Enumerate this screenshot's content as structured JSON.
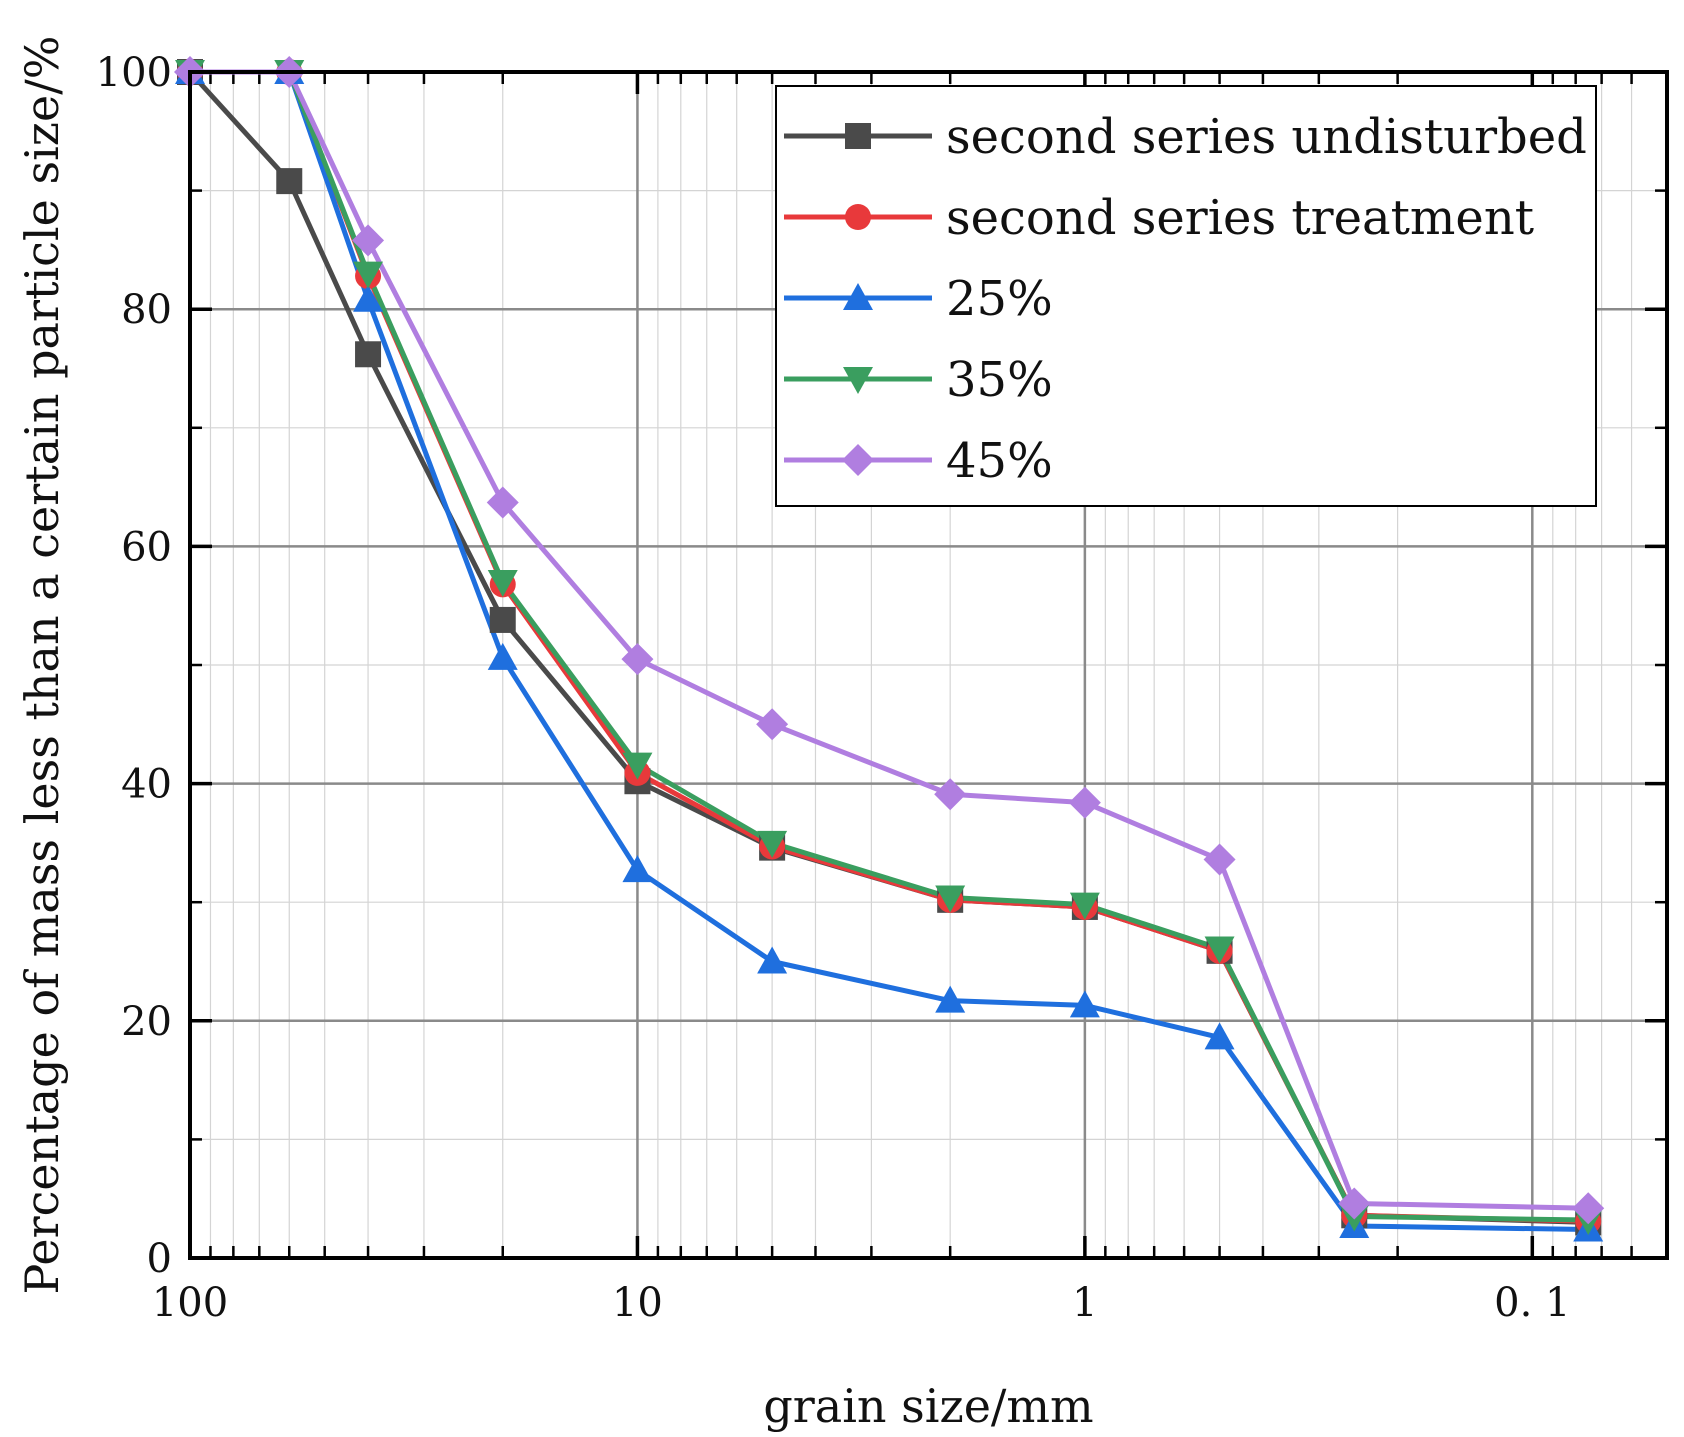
{
  "chart_data": {
    "type": "line",
    "xscale": "log",
    "xaxis_reversed": true,
    "xlabel": "grain size/mm",
    "ylabel": "Percentage of mass less than a certain particle size/%",
    "xlim": [
      100,
      0.05
    ],
    "ylim": [
      0,
      100
    ],
    "x_ticks": [
      {
        "value": 100,
        "label": "100"
      },
      {
        "value": 10,
        "label": "10"
      },
      {
        "value": 1,
        "label": "1"
      },
      {
        "value": 0.1,
        "label": "0. 1"
      }
    ],
    "y_ticks": [
      {
        "value": 0,
        "label": "0"
      },
      {
        "value": 20,
        "label": "20"
      },
      {
        "value": 40,
        "label": "40"
      },
      {
        "value": 60,
        "label": "60"
      },
      {
        "value": 80,
        "label": "80"
      },
      {
        "value": 100,
        "label": "100"
      }
    ],
    "grid": true,
    "legend_position": "top-right",
    "x": [
      100,
      60,
      40,
      20,
      10,
      5,
      2,
      1,
      0.5,
      0.25,
      0.075
    ],
    "series": [
      {
        "name": "second series undisturbed",
        "marker": "square",
        "color": "#4a4a4a",
        "values": [
          100,
          90.8,
          76.2,
          53.8,
          40.2,
          34.6,
          30.2,
          29.6,
          25.9,
          3.6,
          3.0
        ]
      },
      {
        "name": "second series treatment",
        "marker": "circle",
        "color": "#e8393b",
        "values": [
          100,
          100,
          82.8,
          56.8,
          40.9,
          34.7,
          30.2,
          29.6,
          25.9,
          3.6,
          3.1
        ]
      },
      {
        "name": "25%",
        "marker": "triangle-up",
        "color": "#1f6fde",
        "values": [
          100,
          100,
          80.8,
          50.6,
          32.7,
          25.0,
          21.7,
          21.3,
          18.6,
          2.7,
          2.4
        ]
      },
      {
        "name": "35%",
        "marker": "triangle-down",
        "color": "#3a9e5f",
        "values": [
          100,
          100,
          83.0,
          57.0,
          41.6,
          35.0,
          30.4,
          29.8,
          26.1,
          3.5,
          3.2
        ]
      },
      {
        "name": "45%",
        "marker": "diamond",
        "color": "#b07ee0",
        "values": [
          100,
          100,
          85.8,
          63.7,
          50.5,
          45.0,
          39.1,
          38.4,
          33.6,
          4.6,
          4.2
        ]
      }
    ]
  }
}
